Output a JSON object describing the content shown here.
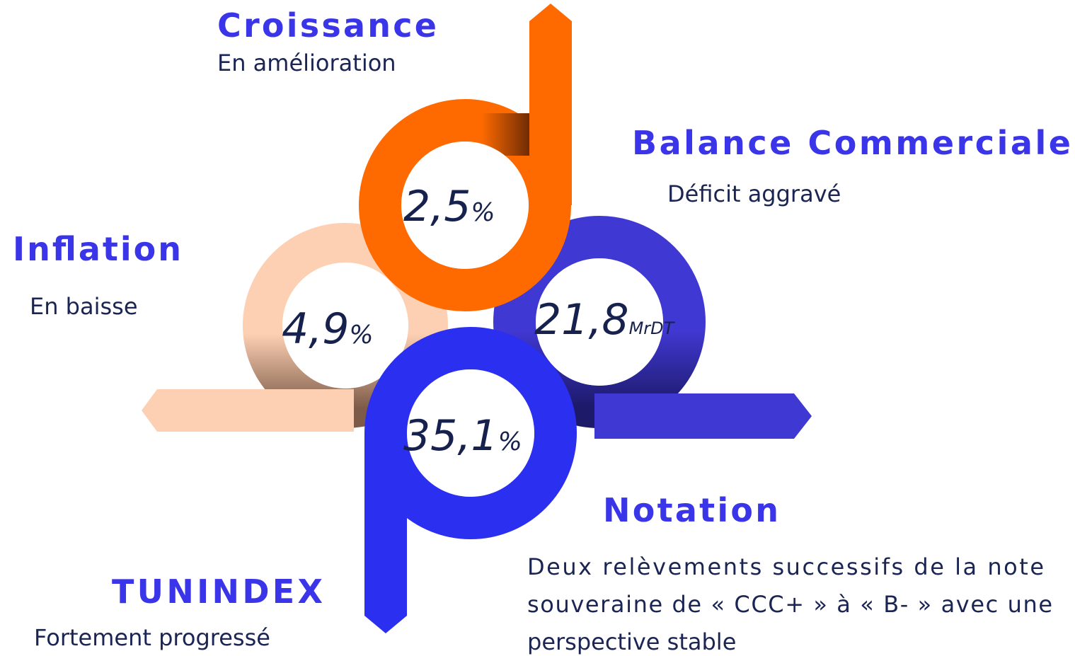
{
  "items": [
    {
      "title": "Croissance",
      "subtitle": "En amélioration",
      "value": "2,5",
      "unit": "%"
    },
    {
      "title": "Balance Commerciale",
      "subtitle": "Déficit aggravé",
      "value": "21,8",
      "unit": "MrDT"
    },
    {
      "title": "Inflation",
      "subtitle": "En baisse",
      "value": "4,9",
      "unit": "%"
    },
    {
      "title": "TUNINDEX",
      "subtitle": "Fortement progressé",
      "value": "35,1",
      "unit": "%"
    },
    {
      "title": "Notation",
      "description": [
        "Deux relèvements successifs de la note",
        "souveraine de « CCC+ » à « B- » avec une",
        "perspective stable"
      ]
    }
  ]
}
